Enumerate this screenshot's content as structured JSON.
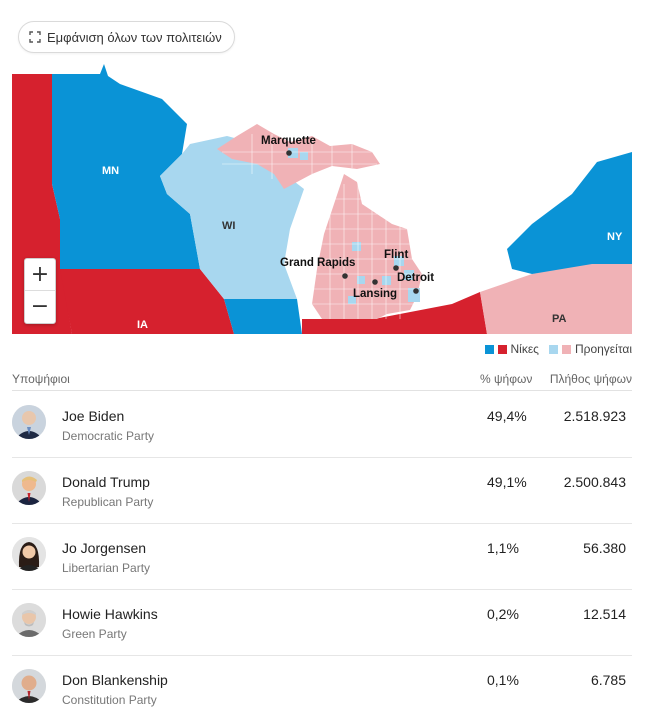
{
  "show_all_button": {
    "label": "Εμφάνιση όλων των πολιτειών",
    "icon": "expand-icon"
  },
  "map": {
    "colors": {
      "dem_win": "#0a93d6",
      "rep_win": "#d6212e",
      "dem_lead": "#a8d7ef",
      "rep_lead": "#f0b2b6",
      "water": "#ffffff"
    },
    "state_labels": [
      "MN",
      "WI",
      "IA",
      "NY",
      "PA"
    ],
    "cities": [
      "Marquette",
      "Grand Rapids",
      "Flint",
      "Lansing",
      "Detroit"
    ],
    "zoom_in_label": "+",
    "zoom_out_label": "−"
  },
  "legend": {
    "wins_label": "Νίκες",
    "leads_label": "Προηγείται"
  },
  "table": {
    "headers": {
      "candidates": "Υποψήφιοι",
      "pct": "% ψήφων",
      "votes": "Πλήθος ψήφων"
    },
    "rows": [
      {
        "name": "Joe Biden",
        "party": "Democratic Party",
        "pct": "49,4%",
        "votes": "2.518.923"
      },
      {
        "name": "Donald Trump",
        "party": "Republican Party",
        "pct": "49,1%",
        "votes": "2.500.843"
      },
      {
        "name": "Jo Jorgensen",
        "party": "Libertarian Party",
        "pct": "1,1%",
        "votes": "56.380"
      },
      {
        "name": "Howie Hawkins",
        "party": "Green Party",
        "pct": "0,2%",
        "votes": "12.514"
      },
      {
        "name": "Don Blankenship",
        "party": "Constitution Party",
        "pct": "0,1%",
        "votes": "6.785"
      }
    ]
  }
}
